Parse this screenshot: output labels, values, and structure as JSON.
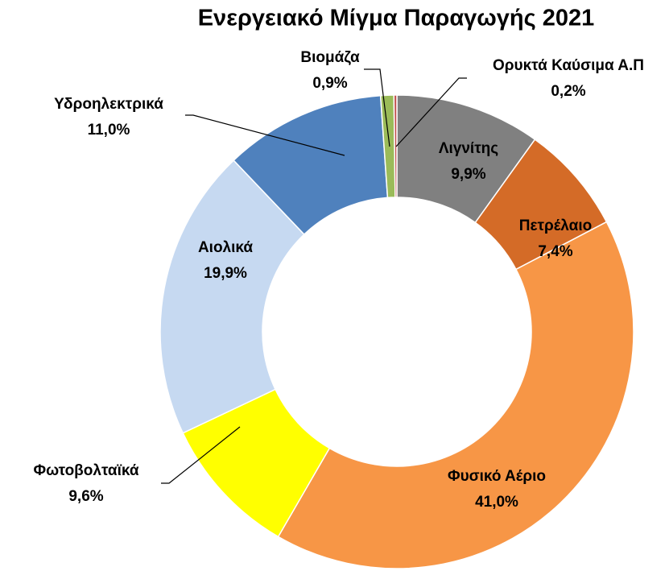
{
  "chart_data": {
    "type": "donut",
    "title": "Ενεργειακό Μίγμα Παραγωγής 2021",
    "categories": [
      "Λιγνίτης",
      "Πετρέλαιο",
      "Φυσικό Αέριο",
      "Φωτοβολταϊκά",
      "Αιολικά",
      "Υδροηλεκτρικά",
      "Βιομάζα",
      "Ορυκτά Καύσιμα Α.Π"
    ],
    "values": [
      9.9,
      7.4,
      41.0,
      9.6,
      19.9,
      11.0,
      0.9,
      0.2
    ],
    "value_labels": [
      "9,9%",
      "7,4%",
      "41,0%",
      "9,6%",
      "19,9%",
      "11,0%",
      "0,9%",
      "0,2%"
    ],
    "colors": [
      "#808080",
      "#d46b27",
      "#f79646",
      "#ffff00",
      "#c6d9f1",
      "#4f81bd",
      "#9bbb59",
      "#c0504d"
    ]
  }
}
